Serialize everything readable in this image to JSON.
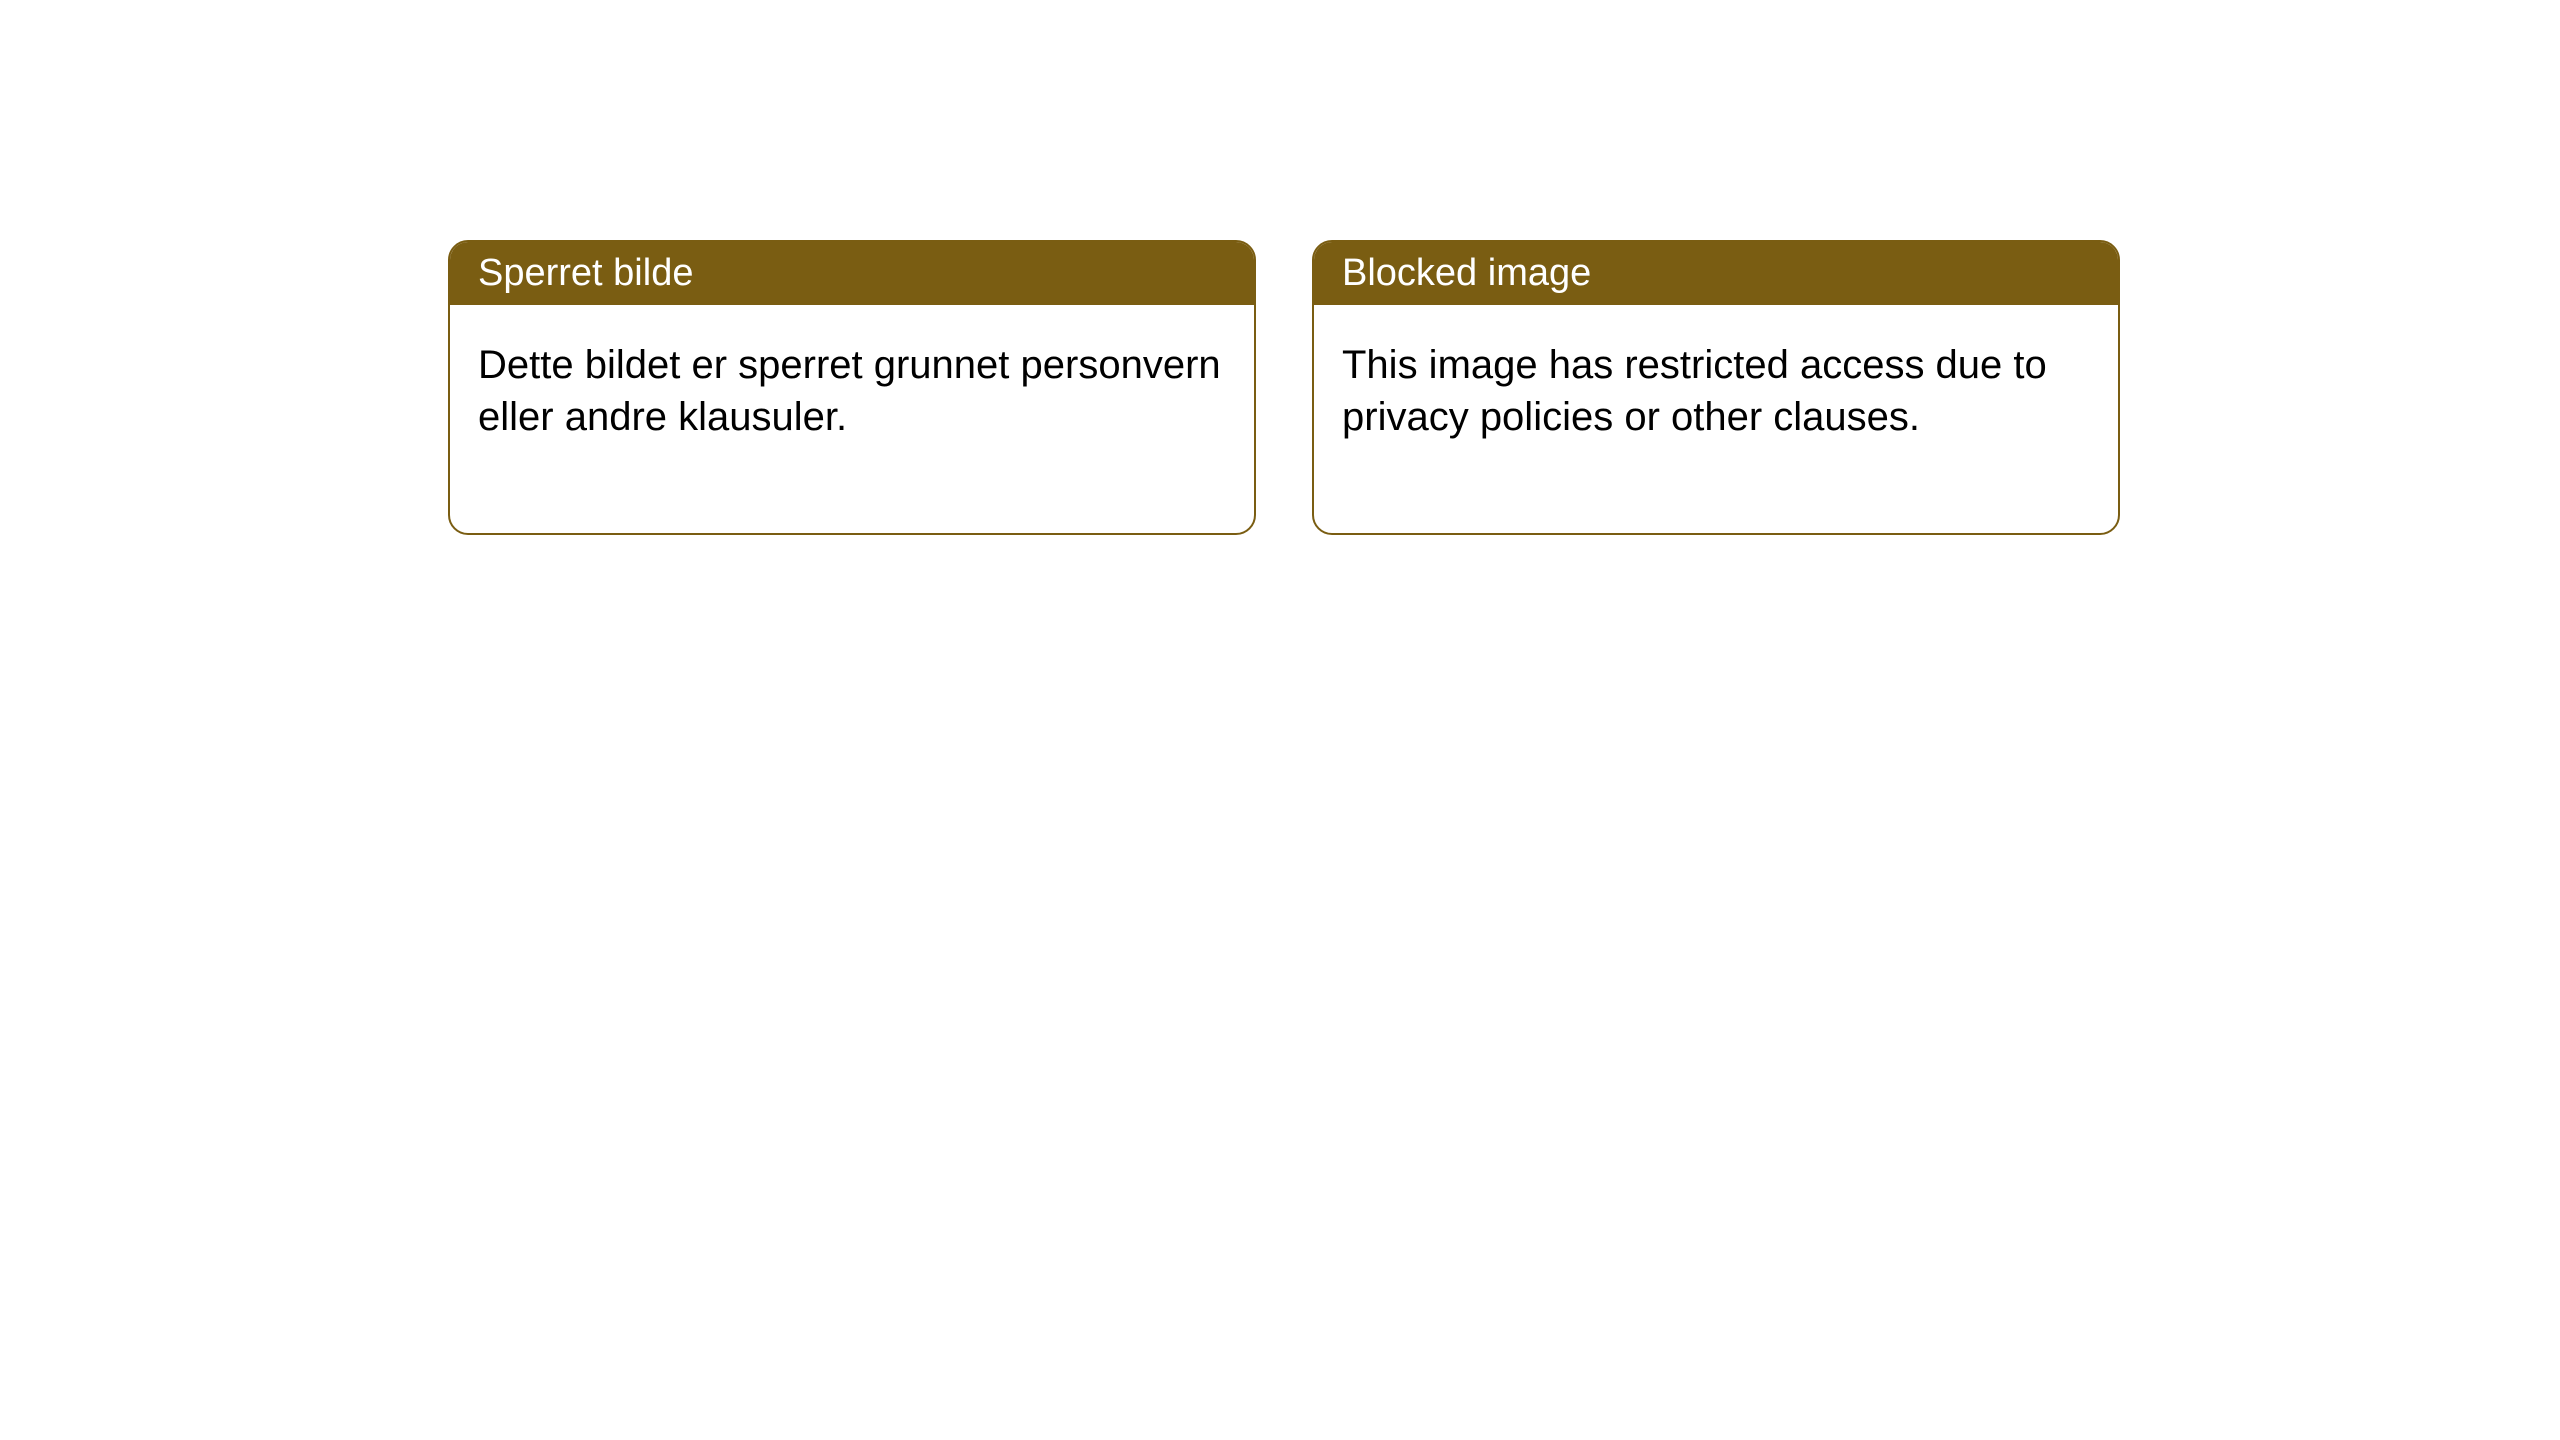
{
  "notices": [
    {
      "title": "Sperret bilde",
      "body": "Dette bildet er sperret grunnet personvern eller andre klausuler."
    },
    {
      "title": "Blocked image",
      "body": "This image has restricted access due to privacy policies or other clauses."
    }
  ],
  "styling": {
    "header_bg": "#7a5d12",
    "header_text_color": "#ffffff",
    "border_color": "#7a5d12",
    "body_bg": "#ffffff",
    "body_text_color": "#000000",
    "border_radius": 20,
    "header_fontsize": 38,
    "body_fontsize": 40
  }
}
